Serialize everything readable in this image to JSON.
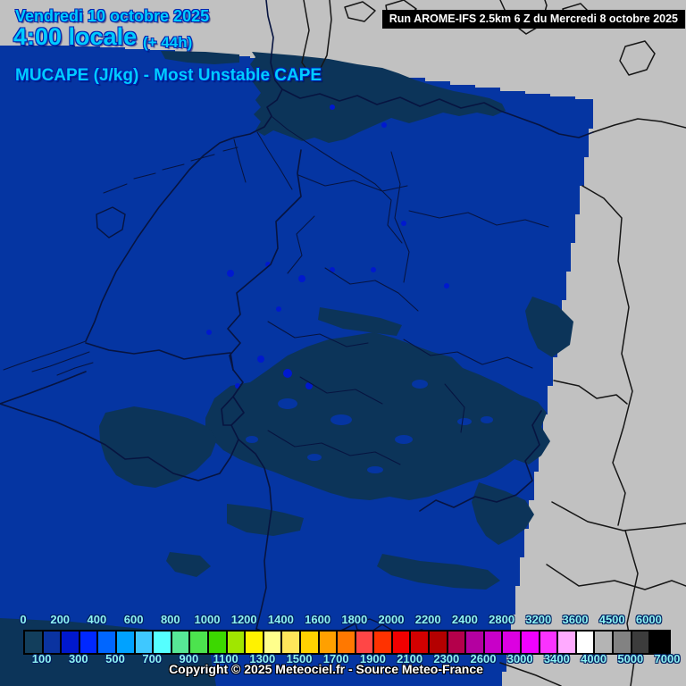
{
  "header": {
    "date_line": "Vendredi 10 octobre 2025",
    "time_line": "4:00 locale",
    "offset": "(+ 44h)",
    "param_title": "MUCAPE (J/kg) - Most Unstable CAPE",
    "run_info": "Run AROME-IFS 2.5km 6 Z du Mercredi 8 octobre 2025"
  },
  "footer": {
    "copyright": "Copyright © 2025 Meteociel.fr - Source Meteo-France"
  },
  "colors": {
    "background_gray": "#c1c1c1",
    "map_base_blue": "#0535a2",
    "map_low_cape": "#0c3459",
    "map_spot_blue": "#0019ce",
    "border_inside": "#071440",
    "border_outside": "#161616",
    "title_cyan": "#00ccff",
    "title_outline": "#0020b0",
    "legend_label_cyan": "#8ef2f2",
    "runbar_bg": "#000000",
    "runbar_text": "#ffffff"
  },
  "legend": {
    "unit": "J/kg",
    "boundaries": [
      0,
      100,
      200,
      300,
      400,
      500,
      600,
      700,
      800,
      900,
      1000,
      1100,
      1200,
      1300,
      1400,
      1500,
      1600,
      1700,
      1800,
      1900,
      2000,
      2100,
      2200,
      2300,
      2400,
      2600,
      2800,
      3000,
      3200,
      3400,
      3600,
      4000,
      4500,
      5000,
      6000,
      7000
    ],
    "colors": [
      "#123e5c",
      "#0a33a0",
      "#0018cd",
      "#0028ff",
      "#0066ff",
      "#00a2ff",
      "#3fc8ff",
      "#55ffff",
      "#57e796",
      "#4ce34e",
      "#3cd800",
      "#a0e600",
      "#fff200",
      "#ffff8c",
      "#ffe65a",
      "#ffd200",
      "#ffa000",
      "#ff7800",
      "#ff4646",
      "#ff3200",
      "#f00000",
      "#d20000",
      "#b40000",
      "#b4004b",
      "#b400a0",
      "#c800c8",
      "#dc00e1",
      "#f000ff",
      "#fa32ff",
      "#ffaaff",
      "#ffffff",
      "#b4b4b4",
      "#828282",
      "#3c3c3c",
      "#000000"
    ]
  }
}
